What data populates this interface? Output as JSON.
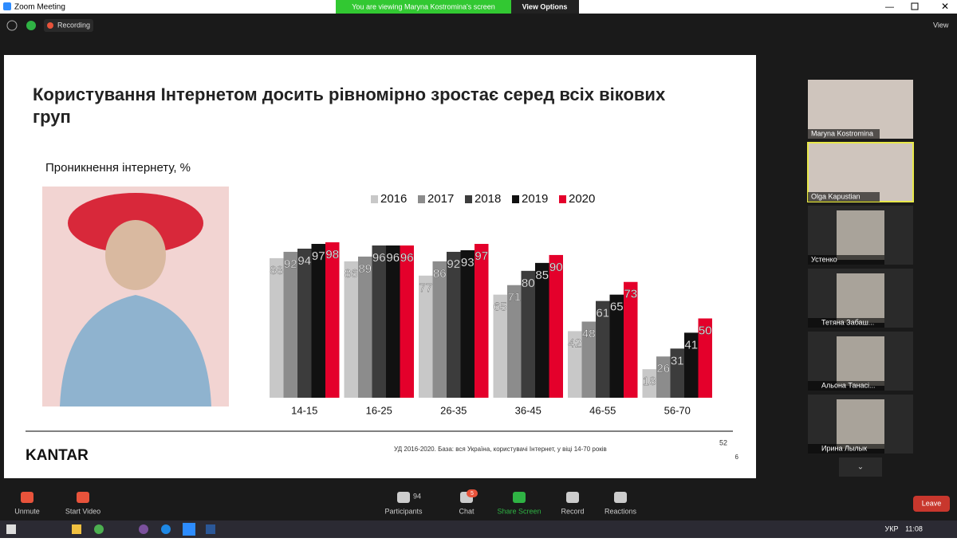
{
  "window": {
    "title": "Zoom Meeting",
    "banner": "You are viewing Maryna Kostromina's screen",
    "view_options": "View Options",
    "recording": "Recording",
    "view": "View"
  },
  "slide": {
    "title": "Користування Інтернетом досить рівномірно зростає серед всіх вікових груп",
    "subtitle": "Проникнення інтернету, %",
    "logo": "KANTAR",
    "footnote": "УД 2016-2020. База: вся Україна, користувачі  Інтернет, у віці 14-70 років",
    "page": "52",
    "page2": "6"
  },
  "chart_data": {
    "type": "bar",
    "categories": [
      "14-15",
      "16-25",
      "26-35",
      "36-45",
      "46-55",
      "56-70"
    ],
    "series": [
      {
        "name": "2016",
        "color": "#c8c8c8",
        "values": [
          88,
          86,
          77,
          65,
          42,
          18
        ]
      },
      {
        "name": "2017",
        "color": "#8c8c8c",
        "values": [
          92,
          89,
          86,
          71,
          48,
          26
        ]
      },
      {
        "name": "2018",
        "color": "#3c3c3c",
        "values": [
          94,
          96,
          92,
          80,
          61,
          31
        ]
      },
      {
        "name": "2019",
        "color": "#111111",
        "values": [
          97,
          96,
          93,
          85,
          65,
          41
        ]
      },
      {
        "name": "2020",
        "color": "#e4002b",
        "values": [
          98,
          96,
          97,
          90,
          73,
          50
        ]
      }
    ]
  },
  "participants": [
    "Maryna Kostromina",
    "Olga Kapustian",
    "Устенко",
    "Тетяна Забаш...",
    "Альона Танасі...",
    "Ирина Лылык"
  ],
  "toolbar": {
    "unmute": "Unmute",
    "start_video": "Start Video",
    "participants": "Participants",
    "participants_count": "94",
    "chat": "Chat",
    "chat_count": "5",
    "share": "Share Screen",
    "record": "Record",
    "reactions": "Reactions",
    "leave": "Leave"
  },
  "taskbar": {
    "lang": "УКР",
    "time": "11:08"
  }
}
